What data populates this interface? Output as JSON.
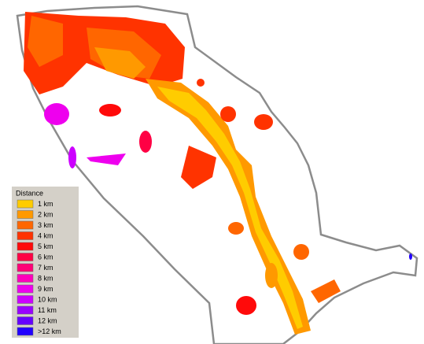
{
  "legend": {
    "title": "Distance",
    "items": [
      {
        "label": "1 km",
        "color": "#ffcc00"
      },
      {
        "label": "2 km",
        "color": "#ff9900"
      },
      {
        "label": "3 km",
        "color": "#ff6600"
      },
      {
        "label": "4 km",
        "color": "#ff3300"
      },
      {
        "label": "5 km",
        "color": "#ff0a0a"
      },
      {
        "label": "6 km",
        "color": "#ff0044"
      },
      {
        "label": "7 km",
        "color": "#ff0077"
      },
      {
        "label": "8 km",
        "color": "#ff00bb"
      },
      {
        "label": "9 km",
        "color": "#ee00ee"
      },
      {
        "label": "10 km",
        "color": "#cc00ff"
      },
      {
        "label": "11 km",
        "color": "#9900ff"
      },
      {
        "label": "12 km",
        "color": "#6600ff"
      },
      {
        "label": ">12 km",
        "color": "#2200ff"
      }
    ]
  }
}
